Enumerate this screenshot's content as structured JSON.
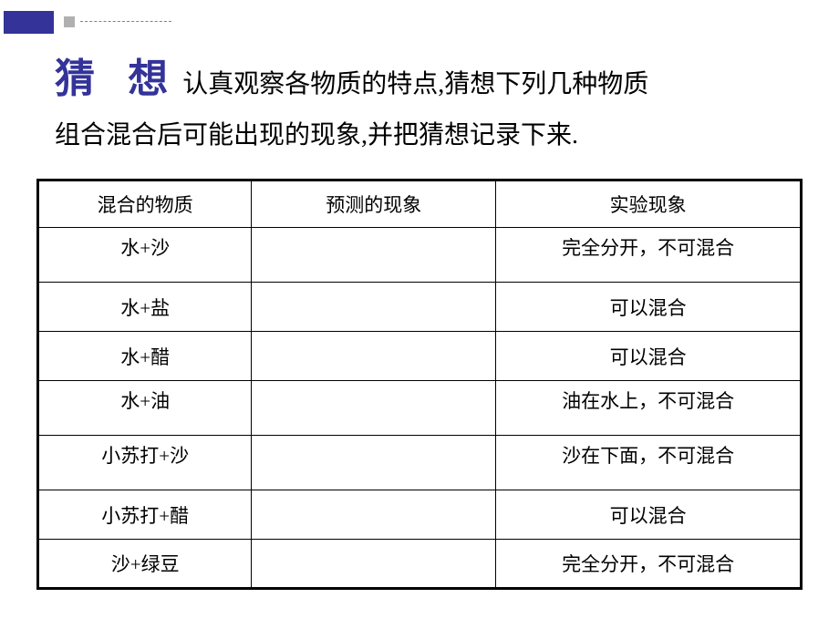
{
  "header": {
    "title_main": "猜 想",
    "title_desc_part1": "认真观察各物质的特点,猜想下列几种物质",
    "title_desc_part2": "组合混合后可能出现的现象,并把猜想记录下来."
  },
  "table": {
    "columns": [
      "混合的物质",
      "预测的现象",
      "实验现象"
    ],
    "column_widths": [
      "28%",
      "32%",
      "40%"
    ],
    "rows": [
      {
        "substance": "水+沙",
        "prediction": "",
        "result": "完全分开，不可混合",
        "tall": true
      },
      {
        "substance": "水+盐",
        "prediction": "",
        "result": "可以混合",
        "tall": false
      },
      {
        "substance": "水+醋",
        "prediction": "",
        "result": "可以混合",
        "tall": false
      },
      {
        "substance": "水+油",
        "prediction": "",
        "result": "油在水上，不可混合",
        "tall": true
      },
      {
        "substance": "小苏打+沙",
        "prediction": "",
        "result": "沙在下面，不可混合",
        "tall": true
      },
      {
        "substance": "小苏打+醋",
        "prediction": "",
        "result": "可以混合",
        "tall": false
      },
      {
        "substance": "沙+绿豆",
        "prediction": "",
        "result": "完全分开，不可混合",
        "tall": false
      }
    ],
    "border_color": "#000000",
    "header_fontsize": 21,
    "cell_fontsize": 21
  },
  "colors": {
    "title_color": "#333399",
    "text_color": "#000000",
    "decoration_primary": "#333399",
    "decoration_secondary": "#b0b0b0",
    "background": "#ffffff"
  }
}
